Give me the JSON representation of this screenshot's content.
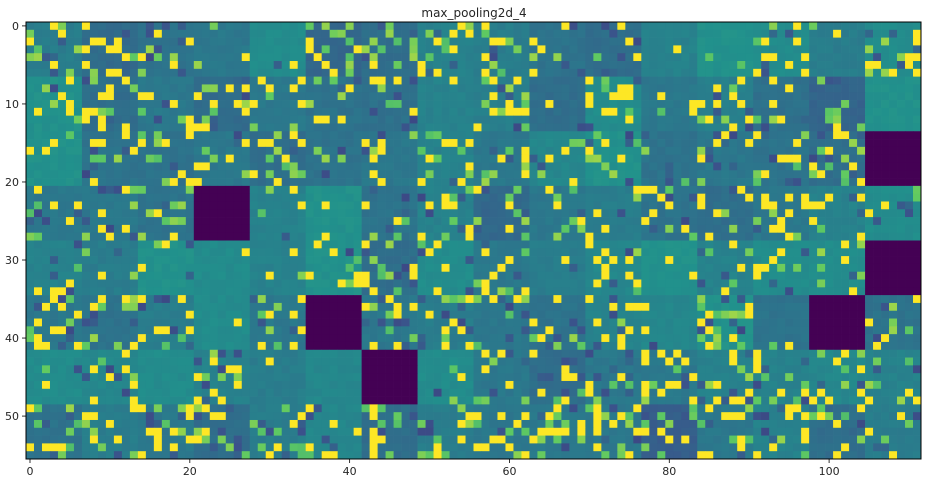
{
  "chart_data": {
    "type": "heatmap",
    "title": "max_pooling2d_4",
    "colormap": "viridis",
    "colormap_stops": [
      "#440154",
      "#3b528b",
      "#21918c",
      "#5ec962",
      "#fde725"
    ],
    "grid": false,
    "xlim": [
      -0.5,
      111.5
    ],
    "ylim": [
      55.5,
      -0.5
    ],
    "x_ticks": [
      0,
      20,
      40,
      60,
      80,
      100
    ],
    "x_tick_labels": [
      "0",
      "20",
      "40",
      "60",
      "80",
      "100"
    ],
    "y_ticks": [
      0,
      10,
      20,
      30,
      40,
      50
    ],
    "y_tick_labels": [
      "0",
      "10",
      "20",
      "30",
      "40",
      "50"
    ],
    "image_shape": [
      56,
      112
    ],
    "tile_size": 7,
    "tile_grid": [
      8,
      16
    ],
    "tile_base_values": [
      [
        0.42,
        0.35,
        0.38,
        0.4,
        0.48,
        0.33,
        0.36,
        0.44,
        0.42,
        0.38,
        0.36,
        0.44,
        0.5,
        0.48,
        0.42,
        0.48
      ],
      [
        0.5,
        0.36,
        0.4,
        0.35,
        0.4,
        0.38,
        0.37,
        0.44,
        0.43,
        0.36,
        0.48,
        0.4,
        0.43,
        0.37,
        0.32,
        0.5
      ],
      [
        0.5,
        0.38,
        0.38,
        0.4,
        0.36,
        0.38,
        0.4,
        0.44,
        0.4,
        0.46,
        0.5,
        0.38,
        0.4,
        0.38,
        0.36,
        0.0
      ],
      [
        0.4,
        0.4,
        0.38,
        0.0,
        0.44,
        0.5,
        0.38,
        0.44,
        0.34,
        0.4,
        0.42,
        0.38,
        0.36,
        0.4,
        0.44,
        0.48
      ],
      [
        0.44,
        0.42,
        0.5,
        0.48,
        0.44,
        0.5,
        0.36,
        0.48,
        0.4,
        0.42,
        0.46,
        0.5,
        0.44,
        0.48,
        0.48,
        0.0
      ],
      [
        0.4,
        0.38,
        0.42,
        0.48,
        0.4,
        0.0,
        0.4,
        0.42,
        0.4,
        0.38,
        0.44,
        0.46,
        0.5,
        0.38,
        0.0,
        0.38
      ],
      [
        0.48,
        0.46,
        0.48,
        0.44,
        0.42,
        0.46,
        0.0,
        0.48,
        0.4,
        0.36,
        0.4,
        0.4,
        0.44,
        0.44,
        0.46,
        0.44
      ],
      [
        0.38,
        0.42,
        0.4,
        0.36,
        0.42,
        0.46,
        0.36,
        0.42,
        0.4,
        0.4,
        0.4,
        0.3,
        0.4,
        0.44,
        0.36,
        0.42
      ]
    ],
    "tile_activity": [
      [
        0.3,
        0.32,
        0.28,
        0.05,
        0.05,
        0.35,
        0.3,
        0.22,
        0.32,
        0.12,
        0.3,
        0.03,
        0.05,
        0.3,
        0.02,
        0.3
      ],
      [
        0.28,
        0.3,
        0.28,
        0.3,
        0.32,
        0.26,
        0.3,
        0.04,
        0.25,
        0.04,
        0.28,
        0.04,
        0.32,
        0.26,
        0.28,
        0.03
      ],
      [
        0.12,
        0.28,
        0.3,
        0.24,
        0.28,
        0.12,
        0.28,
        0.18,
        0.24,
        0.22,
        0.26,
        0.1,
        0.3,
        0.26,
        0.3,
        0.0
      ],
      [
        0.3,
        0.3,
        0.24,
        0.0,
        0.04,
        0.03,
        0.22,
        0.26,
        0.22,
        0.22,
        0.08,
        0.3,
        0.22,
        0.26,
        0.24,
        0.2
      ],
      [
        0.26,
        0.06,
        0.04,
        0.04,
        0.04,
        0.26,
        0.26,
        0.28,
        0.24,
        0.04,
        0.24,
        0.05,
        0.22,
        0.26,
        0.24,
        0.0
      ],
      [
        0.28,
        0.3,
        0.28,
        0.04,
        0.26,
        0.0,
        0.28,
        0.26,
        0.26,
        0.26,
        0.24,
        0.06,
        0.22,
        0.06,
        0.0,
        0.26
      ],
      [
        0.06,
        0.22,
        0.04,
        0.3,
        0.08,
        0.04,
        0.0,
        0.05,
        0.26,
        0.3,
        0.3,
        0.28,
        0.26,
        0.3,
        0.22,
        0.24
      ],
      [
        0.3,
        0.22,
        0.3,
        0.28,
        0.28,
        0.22,
        0.32,
        0.24,
        0.28,
        0.3,
        0.28,
        0.3,
        0.26,
        0.28,
        0.26,
        0.24
      ]
    ],
    "dead_tiles": [
      [
        2,
        15
      ],
      [
        3,
        3
      ],
      [
        4,
        15
      ],
      [
        5,
        5
      ],
      [
        5,
        14
      ],
      [
        6,
        6
      ]
    ]
  }
}
